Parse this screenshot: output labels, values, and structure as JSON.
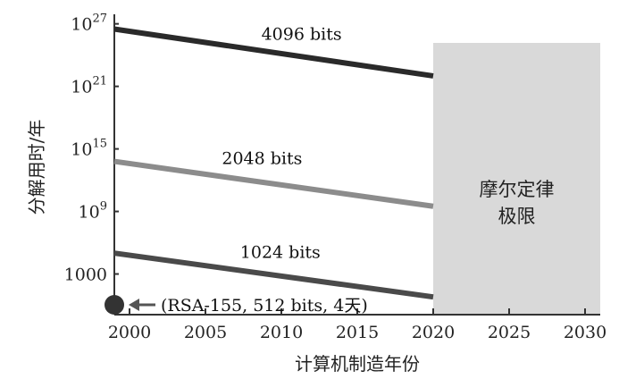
{
  "chart_data": {
    "type": "line",
    "title": "",
    "xlabel": "计算机制造年份",
    "ylabel": "分解用时/年",
    "xlim": [
      1999,
      2031
    ],
    "x_ticks": [
      2000,
      2005,
      2010,
      2015,
      2020,
      2025,
      2030
    ],
    "y_scale": "log",
    "y_ticks": [
      {
        "value": 1000,
        "label": "1000"
      },
      {
        "value": 1000000000.0,
        "label": "10",
        "exp": "9"
      },
      {
        "value": 1000000000000000.0,
        "label": "10",
        "exp": "15"
      },
      {
        "value": 1e+21,
        "label": "10",
        "exp": "21"
      },
      {
        "value": 1e+27,
        "label": "10",
        "exp": "27"
      }
    ],
    "grid": false,
    "series": [
      {
        "name": "4096 bits",
        "x": [
          1999,
          2020
        ],
        "log10_y": [
          26.5,
          22.0
        ],
        "color": "#2a2a2a"
      },
      {
        "name": "2048 bits",
        "x": [
          1999,
          2020
        ],
        "log10_y": [
          13.8,
          9.5
        ],
        "color": "#8c8c8c"
      },
      {
        "name": "1024 bits",
        "x": [
          1999,
          2020
        ],
        "log10_y": [
          5.0,
          0.8
        ],
        "color": "#4a4a4a"
      }
    ],
    "shaded_region": {
      "x_from": 2020,
      "x_to": 2031,
      "label_lines": [
        "摩尔定律",
        "极限"
      ],
      "color": "#d9d9d9"
    },
    "annotation": {
      "x": 1999,
      "text": "(RSA-155, 512 bits, 4天)"
    }
  }
}
